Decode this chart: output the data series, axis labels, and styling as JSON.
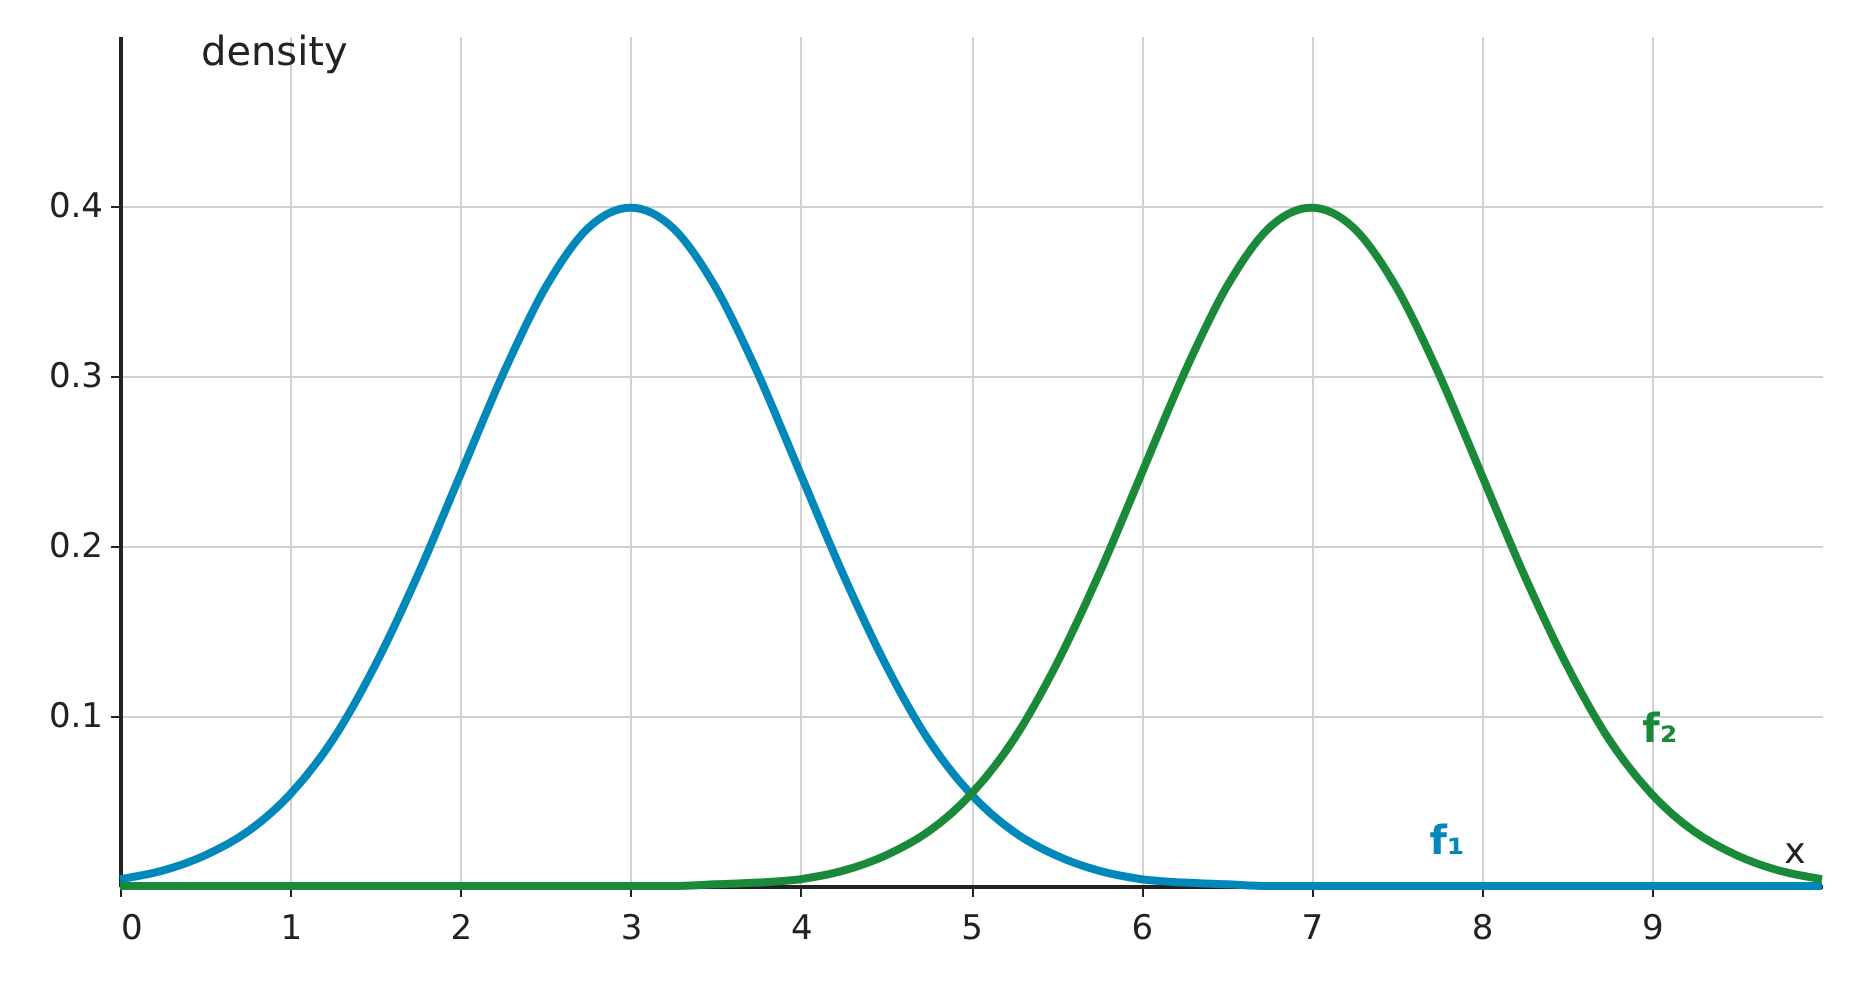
{
  "chart_data": {
    "type": "line",
    "xlabel": "x",
    "ylabel": "density",
    "x": [
      0,
      0.25,
      0.5,
      0.75,
      1,
      1.25,
      1.5,
      1.75,
      2,
      2.25,
      2.5,
      2.75,
      3,
      3.25,
      3.5,
      3.75,
      4,
      4.25,
      4.5,
      4.75,
      5,
      5.25,
      5.5,
      5.75,
      6,
      6.25,
      6.5,
      6.75,
      7,
      7.25,
      7.5,
      7.75,
      8,
      8.25,
      8.5,
      8.75,
      9,
      9.25,
      9.5,
      9.75,
      10
    ],
    "series": [
      {
        "name": "f₁",
        "color": "#0088bb",
        "values": [
          0.004,
          0.009,
          0.018,
          0.032,
          0.054,
          0.086,
          0.13,
          0.183,
          0.242,
          0.301,
          0.352,
          0.387,
          0.399,
          0.387,
          0.352,
          0.301,
          0.242,
          0.183,
          0.13,
          0.086,
          0.054,
          0.032,
          0.018,
          0.009,
          0.004,
          0.002,
          0.001,
          0,
          0,
          0,
          0,
          0,
          0,
          0,
          0,
          0,
          0,
          0,
          0,
          0,
          0
        ]
      },
      {
        "name": "f₂",
        "color": "#1a8a3a",
        "values": [
          0,
          0,
          0,
          0,
          0,
          0,
          0,
          0,
          0,
          0,
          0,
          0,
          0,
          0,
          0.001,
          0.002,
          0.004,
          0.009,
          0.018,
          0.032,
          0.054,
          0.086,
          0.13,
          0.183,
          0.242,
          0.301,
          0.352,
          0.387,
          0.399,
          0.387,
          0.352,
          0.301,
          0.242,
          0.183,
          0.13,
          0.086,
          0.054,
          0.032,
          0.018,
          0.009,
          0.004
        ]
      }
    ],
    "xlim": [
      0,
      10
    ],
    "ylim": [
      0,
      0.5
    ],
    "xticks": [
      0,
      1,
      2,
      3,
      4,
      5,
      6,
      7,
      8,
      9
    ],
    "yticks": [
      0.1,
      0.2,
      0.3,
      0.4
    ],
    "grid": true,
    "marker": "none",
    "line_style": "solid"
  }
}
